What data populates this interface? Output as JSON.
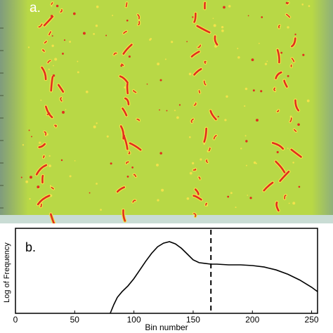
{
  "panel_a": {
    "label": "a.",
    "colors": {
      "background": "#b8d846",
      "feature": "#e0301e",
      "halo": "#f2e24a",
      "left_edge": "#7f9b7e"
    }
  },
  "panel_b": {
    "label": "b.",
    "chart_data": {
      "type": "line",
      "xlabel": "Bin number",
      "ylabel": "Log of Frequency",
      "xlim": [
        0,
        255
      ],
      "xticks": [
        0,
        50,
        100,
        150,
        200,
        250
      ],
      "threshold_x": 165,
      "threshold_style": "dashed",
      "series": [
        {
          "x": [
            80,
            83,
            86,
            90,
            95,
            100,
            105,
            110,
            115,
            120,
            125,
            130,
            135,
            140,
            145,
            150,
            155,
            160,
            165,
            170,
            180,
            190,
            200,
            210,
            220,
            230,
            240,
            250,
            255
          ],
          "y": [
            0.0,
            0.12,
            0.22,
            0.3,
            0.38,
            0.48,
            0.6,
            0.72,
            0.83,
            0.92,
            0.97,
            0.99,
            0.96,
            0.9,
            0.82,
            0.74,
            0.7,
            0.69,
            0.68,
            0.68,
            0.67,
            0.67,
            0.66,
            0.64,
            0.6,
            0.54,
            0.46,
            0.36,
            0.3
          ]
        }
      ]
    }
  }
}
